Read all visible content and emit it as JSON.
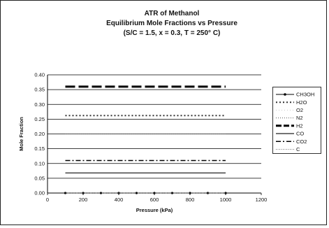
{
  "chart_data": {
    "type": "line",
    "title": "ATR of Methanol",
    "subtitle_lines": [
      "Equilibrium Mole Fractions vs Pressure",
      "(S/C = 1.5, x = 0.3, T = 250° C)"
    ],
    "xlabel": "Pressure (kPa)",
    "ylabel": "Mole Fraction",
    "xlim": [
      0,
      1200
    ],
    "ylim": [
      0,
      0.4
    ],
    "x_ticks": [
      0,
      200,
      400,
      600,
      800,
      1000,
      1200
    ],
    "x_tick_labels": [
      "0",
      "200",
      "400",
      "600",
      "800",
      "1000",
      "1200"
    ],
    "y_ticks": [
      0,
      0.05,
      0.1,
      0.15,
      0.2,
      0.25,
      0.3,
      0.35,
      0.4
    ],
    "y_tick_labels": [
      "0.00",
      "0.05",
      "0.10",
      "0.15",
      "0.20",
      "0.25",
      "0.30",
      "0.35",
      "0.40"
    ],
    "grid": true,
    "legend_position": "right",
    "x": [
      100,
      1000
    ],
    "series": [
      {
        "name": "CH3OH",
        "values": [
          0.0,
          0.0
        ],
        "style": "solid-marker",
        "color": "#000000"
      },
      {
        "name": "H2O",
        "values": [
          0.262,
          0.262
        ],
        "style": "dotted",
        "color": "#333333"
      },
      {
        "name": "O2",
        "values": [
          0.0,
          0.0
        ],
        "style": "none",
        "color": "#aaaaaa"
      },
      {
        "name": "N2",
        "values": [
          0.2,
          0.2
        ],
        "style": "fine-dotted",
        "color": "#555555"
      },
      {
        "name": "H2",
        "values": [
          0.36,
          0.36
        ],
        "style": "long-dash",
        "color": "#000000"
      },
      {
        "name": "CO",
        "values": [
          0.068,
          0.068
        ],
        "style": "solid",
        "color": "#222222"
      },
      {
        "name": "CO2",
        "values": [
          0.11,
          0.11
        ],
        "style": "dash-dot",
        "color": "#000000"
      },
      {
        "name": "C",
        "values": [
          0.0,
          0.0
        ],
        "style": "thin-dotted",
        "color": "#444444"
      }
    ]
  }
}
